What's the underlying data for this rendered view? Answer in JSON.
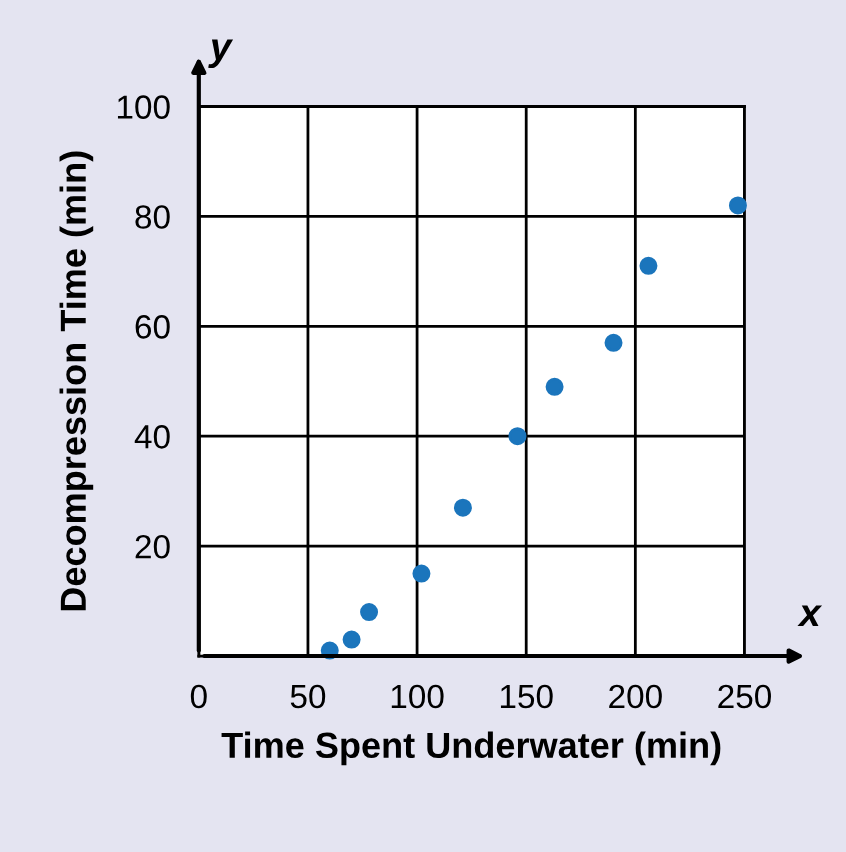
{
  "chart_data": {
    "type": "scatter",
    "xlabel": "Time Spent Underwater (min)",
    "ylabel": "Decompression Time (min)",
    "x": [
      60,
      70,
      78,
      102,
      121,
      146,
      163,
      190,
      206,
      247
    ],
    "series": [
      {
        "color": "#1b75bc",
        "values": [
          1,
          3,
          8,
          15,
          27,
          40,
          49,
          57,
          71,
          82
        ]
      }
    ],
    "xlim": [
      0,
      250
    ],
    "ylim": [
      0,
      100
    ],
    "xticks": [
      0,
      50,
      100,
      150,
      200,
      250
    ],
    "yticks": [
      20,
      40,
      60,
      80,
      100
    ],
    "grid": true,
    "marker": "circle",
    "annotations": [
      "x",
      "y"
    ]
  }
}
